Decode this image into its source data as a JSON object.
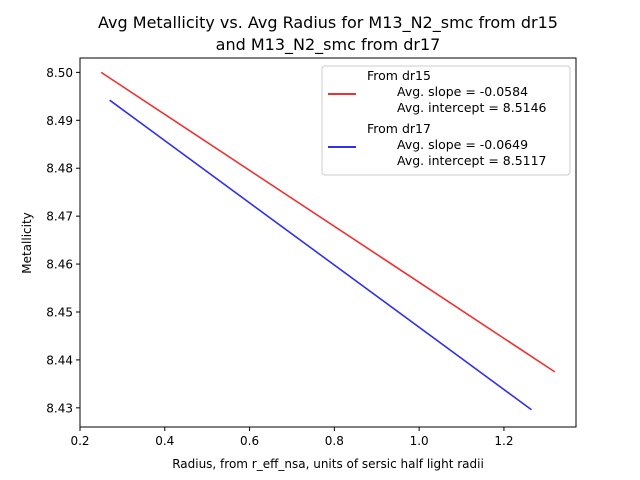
{
  "chart_data": {
    "type": "line",
    "title_lines": [
      "Avg Metallicity vs. Avg Radius for M13_N2_smc from dr15",
      "and M13_N2_smc from dr17"
    ],
    "xlabel": "Radius, from r_eff_nsa, units of sersic half light radii",
    "ylabel": "Metallicity",
    "xlim": [
      0.2,
      1.37
    ],
    "ylim": [
      8.426,
      8.503
    ],
    "xticks": [
      {
        "value": 0.2,
        "label": "0.2"
      },
      {
        "value": 0.4,
        "label": "0.4"
      },
      {
        "value": 0.6,
        "label": "0.6"
      },
      {
        "value": 0.8,
        "label": "0.8"
      },
      {
        "value": 1.0,
        "label": "1.0"
      },
      {
        "value": 1.2,
        "label": "1.2"
      }
    ],
    "yticks": [
      {
        "value": 8.43,
        "label": "8.43"
      },
      {
        "value": 8.44,
        "label": "8.44"
      },
      {
        "value": 8.45,
        "label": "8.45"
      },
      {
        "value": 8.46,
        "label": "8.46"
      },
      {
        "value": 8.47,
        "label": "8.47"
      },
      {
        "value": 8.48,
        "label": "8.48"
      },
      {
        "value": 8.49,
        "label": "8.49"
      },
      {
        "value": 8.5,
        "label": "8.50"
      }
    ],
    "grid": false,
    "legend_position": "top-right",
    "series": [
      {
        "name": "From dr15",
        "legend_lines": [
          "Avg. slope = -0.0584",
          "Avg. intercept = 8.5146"
        ],
        "color": "#f03030",
        "x": [
          0.25,
          1.32
        ],
        "y": [
          8.5,
          8.4375
        ]
      },
      {
        "name": "From dr17",
        "legend_lines": [
          "Avg. slope = -0.0649",
          "Avg. intercept = 8.5117"
        ],
        "color": "#3030f0",
        "x": [
          0.27,
          1.265
        ],
        "y": [
          8.4942,
          8.4296
        ]
      }
    ]
  }
}
